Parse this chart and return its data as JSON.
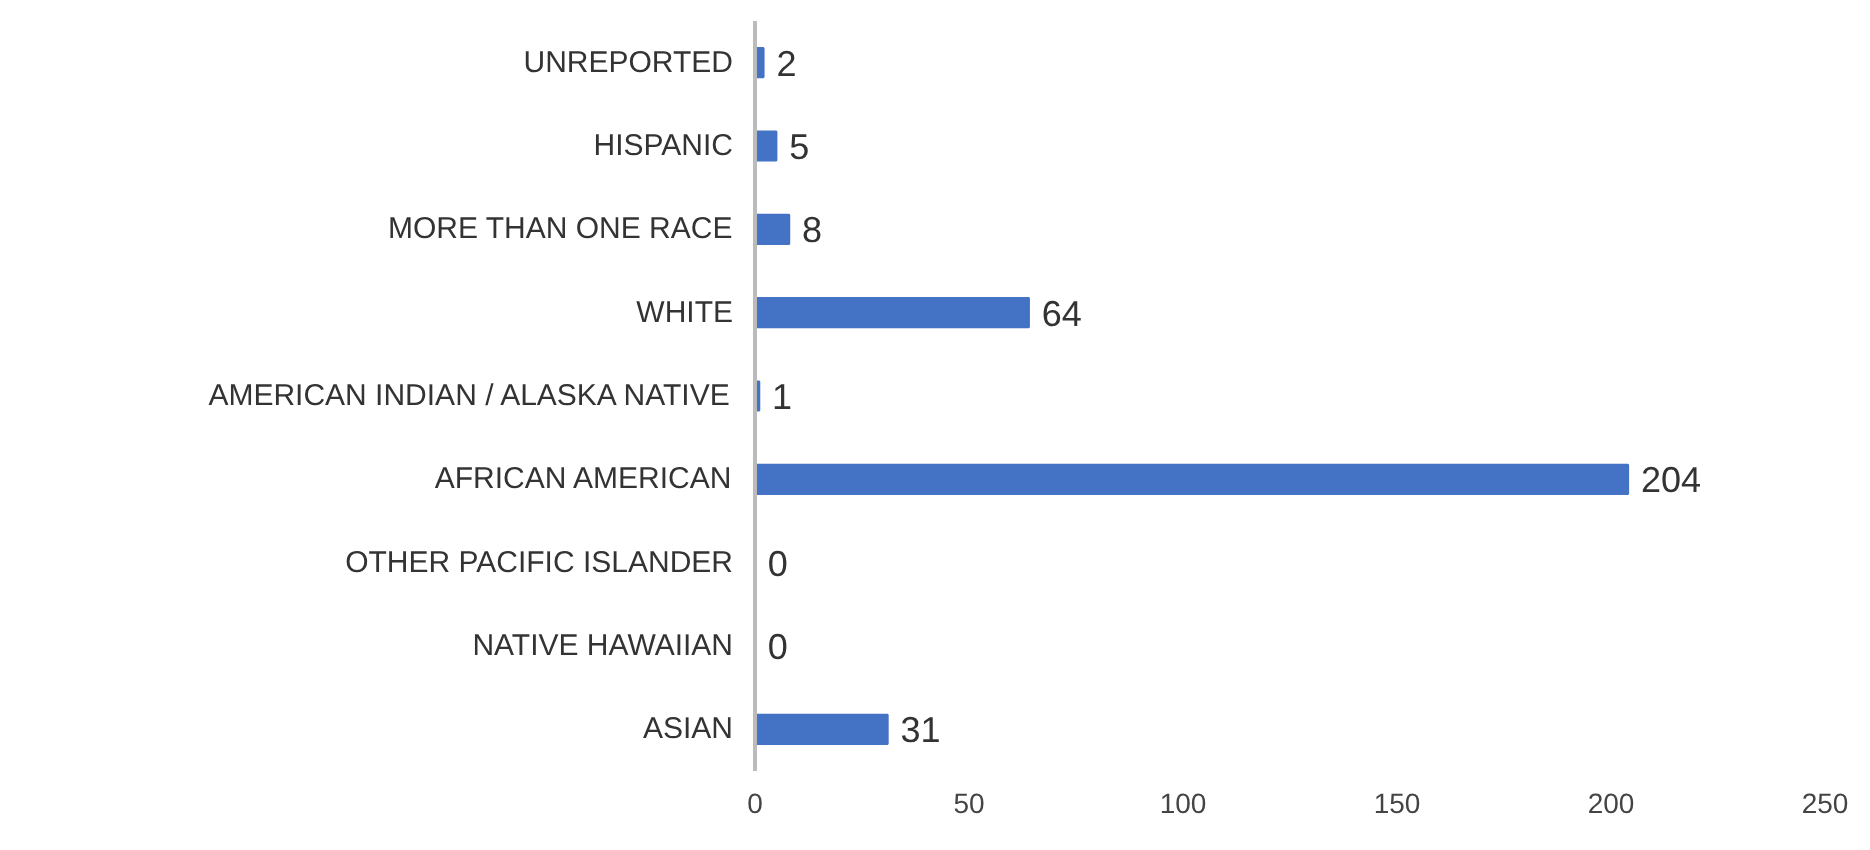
{
  "chart_data": {
    "type": "bar",
    "orientation": "horizontal",
    "categories": [
      "UNREPORTED",
      "HISPANIC",
      "MORE THAN ONE RACE",
      "WHITE",
      "AMERICAN INDIAN / ALASKA NATIVE",
      "AFRICAN AMERICAN",
      "OTHER PACIFIC ISLANDER",
      "NATIVE HAWAIIAN",
      "ASIAN"
    ],
    "values": [
      2,
      5,
      8,
      64,
      1,
      204,
      0,
      0,
      31
    ],
    "color": "#4472c4",
    "xlim": [
      0,
      250
    ],
    "xticks": [
      0,
      50,
      100,
      150,
      200,
      250
    ],
    "data_labels": true,
    "grid": false
  }
}
